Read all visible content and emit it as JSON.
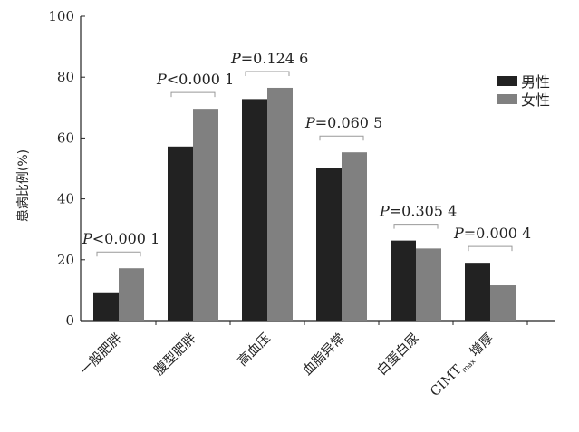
{
  "chart_data": {
    "type": "bar",
    "ylabel": "患病比例(%)",
    "ylim": [
      0,
      100
    ],
    "yticks": [
      0,
      20,
      40,
      60,
      80,
      100
    ],
    "categories": [
      "一般肥胖",
      "腹型肥胖",
      "高血压",
      "血脂异常",
      "白蛋白尿",
      "CIMTmax增厚"
    ],
    "series": [
      {
        "name": "男性",
        "color": "#222222",
        "values": [
          9.3,
          57.2,
          72.8,
          50.0,
          26.3,
          19.0
        ]
      },
      {
        "name": "女性",
        "color": "#808080",
        "values": [
          17.2,
          69.6,
          76.5,
          55.3,
          23.7,
          11.6
        ]
      }
    ],
    "annotations": [
      {
        "category": 0,
        "label": "P<0.000 1"
      },
      {
        "category": 1,
        "label": "P<0.000 1"
      },
      {
        "category": 2,
        "label": "P=0.124 6"
      },
      {
        "category": 3,
        "label": "P=0.060 5"
      },
      {
        "category": 4,
        "label": "P=0.305 4"
      },
      {
        "category": 5,
        "label": "P=0.000 4"
      }
    ],
    "legend_position": "top-right",
    "last_category_parts": {
      "main": "CIMT",
      "sub": "max",
      "rest": "增厚"
    }
  }
}
